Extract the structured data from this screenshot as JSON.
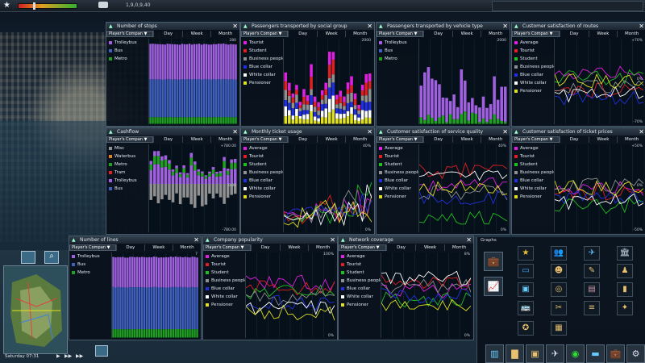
{
  "topbar": {
    "money": "1,9,0,9,40",
    "icons": [
      "star-icon",
      "money-icon"
    ]
  },
  "common_tabs": {
    "selector": "Player's Compan",
    "day": "Day",
    "week": "Week",
    "month": "Month"
  },
  "windows": [
    {
      "id": "w1",
      "title": "Number of stops",
      "legend": [
        {
          "label": "Trolleybus",
          "color": "#a060e0"
        },
        {
          "label": "Bus",
          "color": "#4060c0"
        },
        {
          "label": "Metro",
          "color": "#20a020"
        }
      ],
      "axis_top": "280",
      "axis_bottom": ""
    },
    {
      "id": "w2",
      "title": "Passengers transported by social group",
      "legend": [
        {
          "label": "Tourist",
          "color": "#e020e0"
        },
        {
          "label": "Student",
          "color": "#e02020"
        },
        {
          "label": "Business people",
          "color": "#909090"
        },
        {
          "label": "Blue collar",
          "color": "#2030e0"
        },
        {
          "label": "White collar",
          "color": "#ffffff"
        },
        {
          "label": "Pensioner",
          "color": "#e0e020"
        }
      ],
      "axis_top": "2000",
      "axis_bottom": ""
    },
    {
      "id": "w3",
      "title": "Passengers transported by vehicle type",
      "legend": [
        {
          "label": "Trolleybus",
          "color": "#a060e0"
        },
        {
          "label": "Bus",
          "color": "#4060c0"
        },
        {
          "label": "Metro",
          "color": "#20a020"
        }
      ],
      "axis_top": "2000",
      "axis_bottom": ""
    },
    {
      "id": "w4",
      "title": "Customer satisfaction of routes",
      "legend": [
        {
          "label": "Average",
          "color": "#e020e0"
        },
        {
          "label": "Tourist",
          "color": "#e02020"
        },
        {
          "label": "Student",
          "color": "#20c020"
        },
        {
          "label": "Business people",
          "color": "#909090"
        },
        {
          "label": "Blue collar",
          "color": "#2030e0"
        },
        {
          "label": "White collar",
          "color": "#ffffff"
        },
        {
          "label": "Pensioner",
          "color": "#e0e020"
        }
      ],
      "axis_top": "+70%",
      "axis_mid": "0%",
      "axis_bottom": "-70%"
    },
    {
      "id": "w5",
      "title": "Cashflow",
      "legend": [
        {
          "label": "Misc",
          "color": "#909090"
        },
        {
          "label": "Waterbus",
          "color": "#e08020"
        },
        {
          "label": "Metro",
          "color": "#20a020"
        },
        {
          "label": "Tram",
          "color": "#e02020"
        },
        {
          "label": "Trolleybus",
          "color": "#a060e0"
        },
        {
          "label": "Bus",
          "color": "#4060c0"
        }
      ],
      "axis_top": "+780.00",
      "axis_mid": "0.00",
      "axis_bottom": "-780.00"
    },
    {
      "id": "w6",
      "title": "Monthly ticket usage",
      "legend": [
        {
          "label": "Average",
          "color": "#e020e0"
        },
        {
          "label": "Tourist",
          "color": "#e02020"
        },
        {
          "label": "Student",
          "color": "#20c020"
        },
        {
          "label": "Business people",
          "color": "#909090"
        },
        {
          "label": "Blue collar",
          "color": "#2030e0"
        },
        {
          "label": "White collar",
          "color": "#ffffff"
        },
        {
          "label": "Pensioner",
          "color": "#e0e020"
        }
      ],
      "axis_top": "40%",
      "axis_bottom": "0%"
    },
    {
      "id": "w7",
      "title": "Customer satisfaction of service quality",
      "legend": [
        {
          "label": "Average",
          "color": "#e020e0"
        },
        {
          "label": "Tourist",
          "color": "#e02020"
        },
        {
          "label": "Student",
          "color": "#20c020"
        },
        {
          "label": "Business people",
          "color": "#909090"
        },
        {
          "label": "Blue collar",
          "color": "#2030e0"
        },
        {
          "label": "White collar",
          "color": "#ffffff"
        },
        {
          "label": "Pensioner",
          "color": "#e0e020"
        }
      ],
      "axis_top": "40%",
      "axis_bottom": "0%"
    },
    {
      "id": "w8",
      "title": "Customer satisfaction of ticket prices",
      "legend": [
        {
          "label": "Average",
          "color": "#e020e0"
        },
        {
          "label": "Tourist",
          "color": "#e02020"
        },
        {
          "label": "Student",
          "color": "#20c020"
        },
        {
          "label": "Business people",
          "color": "#909090"
        },
        {
          "label": "Blue collar",
          "color": "#2030e0"
        },
        {
          "label": "White collar",
          "color": "#ffffff"
        },
        {
          "label": "Pensioner",
          "color": "#e0e020"
        }
      ],
      "axis_top": "+50%",
      "axis_mid": "0%",
      "axis_bottom": "-50%"
    },
    {
      "id": "w9",
      "title": "Number of lines",
      "legend": [
        {
          "label": "Trolleybus",
          "color": "#a060e0"
        },
        {
          "label": "Bus",
          "color": "#4060c0"
        },
        {
          "label": "Metro",
          "color": "#20a020"
        }
      ],
      "axis_top": "7",
      "axis_bottom": ""
    },
    {
      "id": "w10",
      "title": "Company popularity",
      "legend": [
        {
          "label": "Average",
          "color": "#e020e0"
        },
        {
          "label": "Tourist",
          "color": "#e02020"
        },
        {
          "label": "Student",
          "color": "#20c020"
        },
        {
          "label": "Business people",
          "color": "#909090"
        },
        {
          "label": "Blue collar",
          "color": "#2030e0"
        },
        {
          "label": "White collar",
          "color": "#ffffff"
        },
        {
          "label": "Pensioner",
          "color": "#e0e020"
        }
      ],
      "axis_top": "100%",
      "axis_bottom": "0%"
    },
    {
      "id": "w11",
      "title": "Network coverage",
      "legend": [
        {
          "label": "Average",
          "color": "#e020e0"
        },
        {
          "label": "Tourist",
          "color": "#e02020"
        },
        {
          "label": "Student",
          "color": "#20c020"
        },
        {
          "label": "Business people",
          "color": "#909090"
        },
        {
          "label": "Blue collar",
          "color": "#2030e0"
        },
        {
          "label": "White collar",
          "color": "#ffffff"
        },
        {
          "label": "Pensioner",
          "color": "#e0e020"
        }
      ],
      "axis_top": "8%",
      "axis_bottom": "0%"
    }
  ],
  "graphs_panel": {
    "title": "Graphs"
  },
  "status": {
    "clock": "Saturday 07:31"
  }
}
